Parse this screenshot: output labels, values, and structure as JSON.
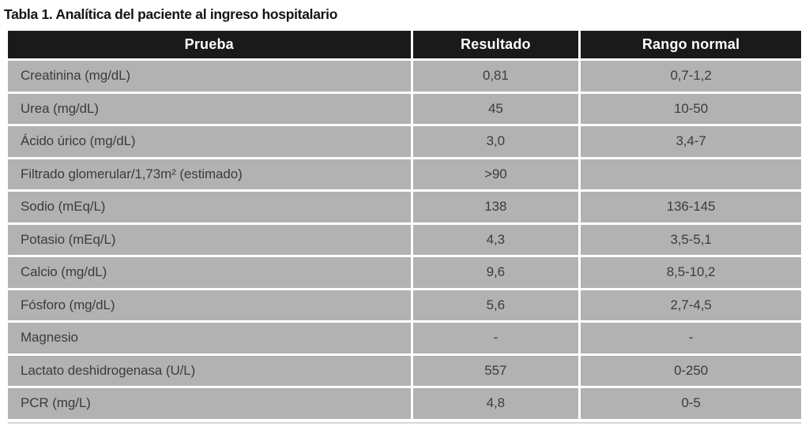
{
  "title": "Tabla 1. Analítica del paciente al ingreso hospitalario",
  "table": {
    "columns": [
      "Prueba",
      "Resultado",
      "Rango normal"
    ],
    "rows": [
      {
        "prueba": "Creatinina (mg/dL)",
        "resultado": "0,81",
        "rango": "0,7-1,2"
      },
      {
        "prueba": "Urea (mg/dL)",
        "resultado": "45",
        "rango": "10-50"
      },
      {
        "prueba": "Ácido úrico (mg/dL)",
        "resultado": "3,0",
        "rango": "3,4-7"
      },
      {
        "prueba": "Filtrado glomerular/1,73m² (estimado)",
        "resultado": ">90",
        "rango": ""
      },
      {
        "prueba": "Sodio (mEq/L)",
        "resultado": "138",
        "rango": "136-145"
      },
      {
        "prueba": "Potasio (mEq/L)",
        "resultado": "4,3",
        "rango": "3,5-5,1"
      },
      {
        "prueba": "Calcio (mg/dL)",
        "resultado": "9,6",
        "rango": "8,5-10,2"
      },
      {
        "prueba": "Fósforo (mg/dL)",
        "resultado": "5,6",
        "rango": "2,7-4,5"
      },
      {
        "prueba": "Magnesio",
        "resultado": "-",
        "rango": "-"
      },
      {
        "prueba": "Lactato deshidrogenasa (U/L)",
        "resultado": "557",
        "rango": "0-250"
      },
      {
        "prueba": "PCR (mg/L)",
        "resultado": "4,8",
        "rango": "0-5"
      }
    ]
  },
  "colors": {
    "header_bg": "#1a1a1a",
    "header_text": "#ffffff",
    "row_bg": "#b2b2b2",
    "row_text": "#3c3c3c"
  }
}
